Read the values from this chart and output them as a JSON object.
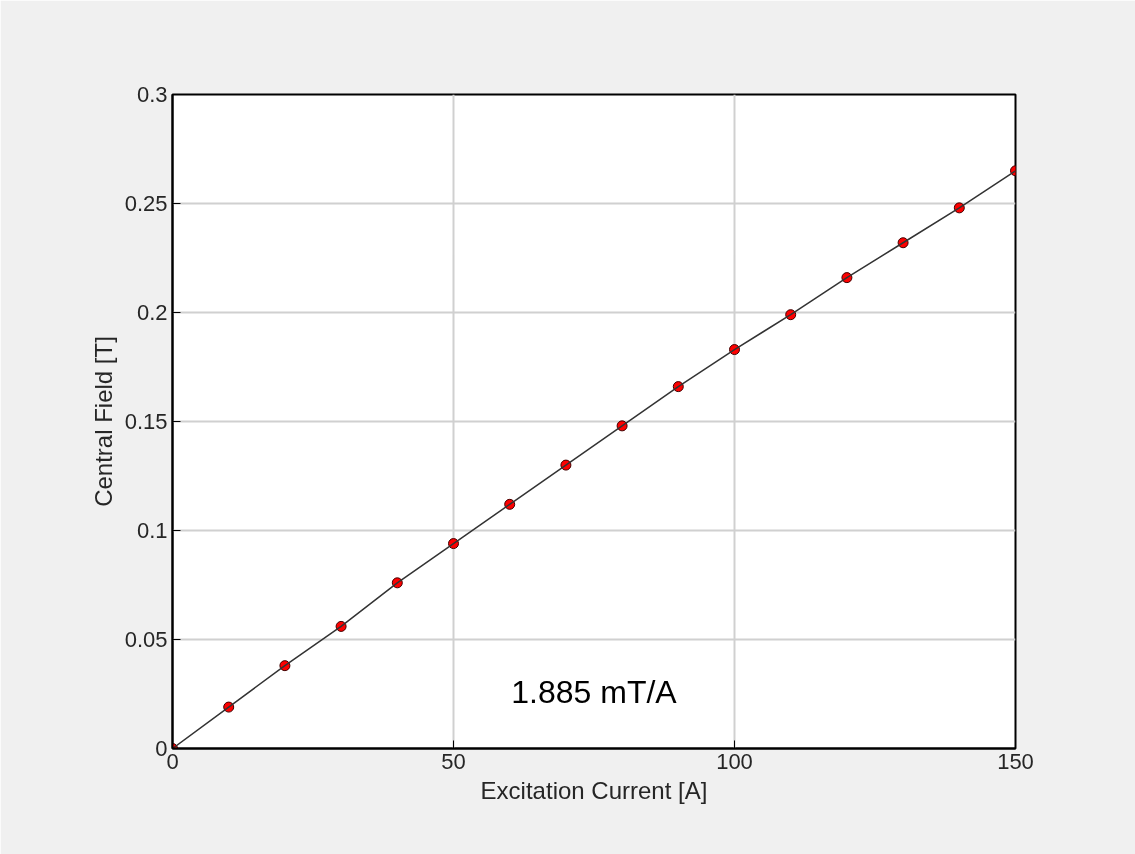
{
  "chart_data": {
    "type": "scatter",
    "xlabel": "Excitation Current [A]",
    "ylabel": "Central Field [T]",
    "x": [
      0,
      10,
      20,
      30,
      40,
      50,
      60,
      70,
      80,
      90,
      100,
      110,
      120,
      130,
      140,
      150
    ],
    "series": [
      {
        "type": "scatter",
        "color": "#ff0000",
        "marker": "circle",
        "values": [
          0,
          0.019,
          0.038,
          0.056,
          0.076,
          0.094,
          0.112,
          0.13,
          0.148,
          0.166,
          0.183,
          0.199,
          0.216,
          0.232,
          0.248,
          0.265
        ]
      },
      {
        "type": "line",
        "color": "#333333",
        "marker": "none",
        "line_style": "solid",
        "values": [
          0,
          0.019,
          0.038,
          0.056,
          0.076,
          0.094,
          0.112,
          0.13,
          0.148,
          0.166,
          0.183,
          0.199,
          0.216,
          0.232,
          0.248,
          0.265
        ]
      }
    ],
    "xlim": [
      0,
      150
    ],
    "xticks": [
      0,
      50,
      100,
      150
    ],
    "ylim": [
      0,
      0.3
    ],
    "yticks": [
      0,
      0.05,
      0.1,
      0.15,
      0.2,
      0.25,
      0.3
    ],
    "grid": true,
    "annotations": [
      "1.885 mT/A"
    ]
  }
}
